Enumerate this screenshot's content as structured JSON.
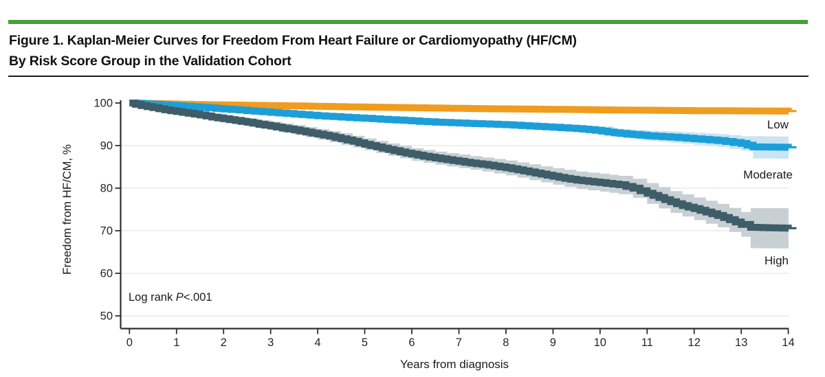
{
  "figure": {
    "title_line1": "Figure 1. Kaplan-Meier Curves for Freedom From Heart Failure or Cardiomyopathy (HF/CM)",
    "title_line2": "By Risk Score Group in the Validation Cohort",
    "accent_bar_color": "#4C9C3E",
    "divider_color": "#1C1C1C"
  },
  "chart_data": {
    "type": "line",
    "subtype": "kaplan_meier_step",
    "title": "",
    "xlabel": "Years from diagnosis",
    "ylabel": "Freedom from HF/CM, %",
    "xlim": [
      0,
      14
    ],
    "ylim": [
      50,
      100
    ],
    "xticks": [
      0,
      1,
      2,
      3,
      4,
      5,
      6,
      7,
      8,
      9,
      10,
      11,
      12,
      13,
      14
    ],
    "yticks": [
      100,
      90,
      80,
      70,
      60,
      50
    ],
    "grid": "horizontal-light",
    "legend_position": "right-of-curves",
    "annotation": {
      "pre": "Log rank ",
      "p": "P",
      "post": "<.001"
    },
    "colors": {
      "grid": "#EAEAEA",
      "axis": "#2E2E2E",
      "text": "#1A1A1A"
    },
    "series": [
      {
        "name": "Low",
        "color": "#F09C1E",
        "ci_color": "#F9DFB0",
        "points": [
          [
            0,
            100
          ],
          [
            0.7,
            99.8
          ],
          [
            1.6,
            99.6
          ],
          [
            2.6,
            99.45
          ],
          [
            3.6,
            99.3
          ],
          [
            4.6,
            99.1
          ],
          [
            5.6,
            98.95
          ],
          [
            6.6,
            98.8
          ],
          [
            7.6,
            98.65
          ],
          [
            8.6,
            98.55
          ],
          [
            9.6,
            98.45
          ],
          [
            10.3,
            98.35
          ],
          [
            11,
            98.3
          ],
          [
            12,
            98.2
          ],
          [
            13,
            98.15
          ],
          [
            14,
            98.1
          ]
        ],
        "ci": [
          [
            11.5,
            97.7,
            98.8
          ],
          [
            12.3,
            97.5,
            98.9
          ],
          [
            13,
            97.4,
            98.9
          ],
          [
            14,
            97.3,
            98.9
          ]
        ]
      },
      {
        "name": "Moderate",
        "color": "#1C9FD9",
        "ci_color": "#C9E4F4",
        "points": [
          [
            0,
            100
          ],
          [
            0.5,
            99.7
          ],
          [
            1,
            99.35
          ],
          [
            1.5,
            99.0
          ],
          [
            2,
            98.6
          ],
          [
            2.5,
            98.2
          ],
          [
            3,
            97.8
          ],
          [
            3.5,
            97.4
          ],
          [
            4,
            97.0
          ],
          [
            4.5,
            96.7
          ],
          [
            5,
            96.4
          ],
          [
            5.5,
            96.1
          ],
          [
            6,
            95.8
          ],
          [
            6.5,
            95.5
          ],
          [
            7,
            95.3
          ],
          [
            7.5,
            95.1
          ],
          [
            8,
            94.9
          ],
          [
            8.5,
            94.6
          ],
          [
            9,
            94.3
          ],
          [
            9.5,
            94.0
          ],
          [
            9.9,
            93.6
          ],
          [
            10.3,
            93.0
          ],
          [
            10.7,
            92.6
          ],
          [
            11,
            92.3
          ],
          [
            11.5,
            92.0
          ],
          [
            12,
            91.6
          ],
          [
            12.5,
            91.2
          ],
          [
            13,
            90.5
          ],
          [
            13.25,
            89.7
          ],
          [
            14,
            89.6
          ]
        ],
        "ci": [
          [
            9.5,
            93.2,
            94.8
          ],
          [
            10,
            92.7,
            94.5
          ],
          [
            10.3,
            92.0,
            94.0
          ],
          [
            10.7,
            91.5,
            93.7
          ],
          [
            11,
            91.1,
            93.5
          ],
          [
            11.5,
            90.7,
            93.3
          ],
          [
            12,
            90.2,
            93.0
          ],
          [
            12.5,
            89.7,
            92.7
          ],
          [
            13,
            88.8,
            92.2
          ],
          [
            13.25,
            87.0,
            92.2
          ],
          [
            14,
            86.9,
            92.1
          ]
        ]
      },
      {
        "name": "High",
        "color": "#3F5D69",
        "ci_color": "#C9D0D4",
        "points": [
          [
            0,
            100
          ],
          [
            0.25,
            99.4
          ],
          [
            0.5,
            98.9
          ],
          [
            0.75,
            98.4
          ],
          [
            1,
            98.0
          ],
          [
            1.25,
            97.6
          ],
          [
            1.5,
            97.2
          ],
          [
            1.75,
            96.7
          ],
          [
            2,
            96.3
          ],
          [
            2.25,
            95.9
          ],
          [
            2.5,
            95.5
          ],
          [
            2.75,
            95.0
          ],
          [
            3,
            94.6
          ],
          [
            3.25,
            94.1
          ],
          [
            3.5,
            93.7
          ],
          [
            3.75,
            93.2
          ],
          [
            4,
            92.7
          ],
          [
            4.25,
            92.2
          ],
          [
            4.5,
            91.6
          ],
          [
            4.75,
            91.0
          ],
          [
            5,
            90.3
          ],
          [
            5.25,
            89.7
          ],
          [
            5.5,
            89.1
          ],
          [
            5.75,
            88.5
          ],
          [
            6,
            88.0
          ],
          [
            6.25,
            87.5
          ],
          [
            6.5,
            87.1
          ],
          [
            6.75,
            86.7
          ],
          [
            7,
            86.3
          ],
          [
            7.25,
            85.9
          ],
          [
            7.5,
            85.6
          ],
          [
            7.75,
            85.2
          ],
          [
            8,
            84.8
          ],
          [
            8.25,
            84.3
          ],
          [
            8.5,
            83.8
          ],
          [
            8.75,
            83.3
          ],
          [
            9,
            82.8
          ],
          [
            9.25,
            82.3
          ],
          [
            9.5,
            81.9
          ],
          [
            9.75,
            81.6
          ],
          [
            10,
            81.3
          ],
          [
            10.4,
            80.8
          ],
          [
            10.7,
            80.0
          ],
          [
            11,
            78.8
          ],
          [
            11.25,
            77.8
          ],
          [
            11.5,
            76.8
          ],
          [
            11.75,
            75.9
          ],
          [
            12,
            75.2
          ],
          [
            12.25,
            74.4
          ],
          [
            12.5,
            73.6
          ],
          [
            12.75,
            72.6
          ],
          [
            13,
            71.5
          ],
          [
            13.2,
            70.8
          ],
          [
            13.6,
            70.7
          ],
          [
            14,
            70.6
          ]
        ],
        "ci": [
          [
            1.5,
            96.4,
            97.9
          ],
          [
            2,
            95.4,
            97.1
          ],
          [
            2.5,
            94.5,
            96.4
          ],
          [
            3,
            93.6,
            95.6
          ],
          [
            3.5,
            92.5,
            94.8
          ],
          [
            4,
            91.4,
            93.9
          ],
          [
            4.5,
            90.2,
            92.9
          ],
          [
            5,
            88.9,
            91.7
          ],
          [
            5.5,
            87.6,
            90.5
          ],
          [
            6,
            86.4,
            89.4
          ],
          [
            6.5,
            85.5,
            88.6
          ],
          [
            7,
            84.7,
            87.9
          ],
          [
            7.5,
            83.9,
            87.2
          ],
          [
            8,
            83.0,
            86.5
          ],
          [
            8.5,
            81.9,
            85.6
          ],
          [
            9,
            80.8,
            84.7
          ],
          [
            9.5,
            79.8,
            83.9
          ],
          [
            10,
            79.2,
            83.4
          ],
          [
            10.4,
            78.6,
            82.9
          ],
          [
            10.7,
            77.7,
            82.2
          ],
          [
            11,
            76.3,
            81.2
          ],
          [
            11.5,
            74.2,
            79.3
          ],
          [
            12,
            72.5,
            77.8
          ],
          [
            12.5,
            70.8,
            76.3
          ],
          [
            13,
            68.6,
            74.4
          ],
          [
            13.2,
            65.9,
            75.3
          ],
          [
            14,
            65.8,
            75.3
          ]
        ]
      }
    ]
  }
}
